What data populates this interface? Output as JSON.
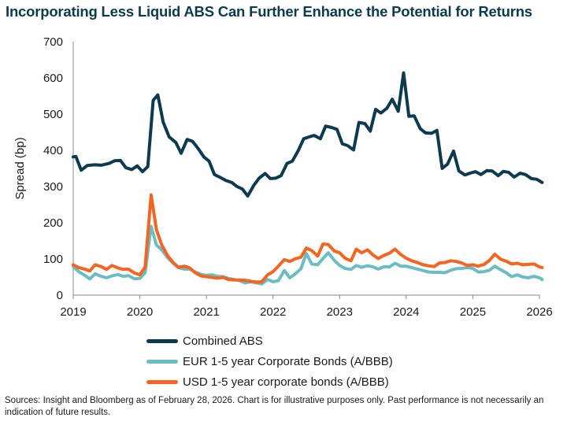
{
  "title": "Incorporating Less Liquid ABS Can Further Enhance the Potential for Returns",
  "source": "Sources: Insight and Bloomberg as of February 28, 2026. Chart is for illustrative purposes only. Past performance is not necessarily an indication of future results.",
  "colors": {
    "combined": "#0d3a4f",
    "eur": "#6cbcc4",
    "usd": "#f26522"
  },
  "chart_data": {
    "type": "line",
    "title": "Incorporating Less Liquid ABS Can Further Enhance the Potential for Returns",
    "xlabel": "",
    "ylabel": "Spread (bp)",
    "xlim": [
      2019,
      2026
    ],
    "ylim": [
      0,
      700
    ],
    "yticks": [
      0,
      100,
      200,
      300,
      400,
      500,
      600,
      700
    ],
    "xticks": [
      2019,
      2020,
      2021,
      2022,
      2023,
      2024,
      2025,
      2026
    ],
    "xtick_labels": [
      "2019",
      "2020",
      "2021",
      "2022",
      "2023",
      "2024",
      "2025",
      "2026"
    ],
    "grid": false,
    "legend_position": "bottom",
    "series": [
      {
        "name": "Combined ABS",
        "color_key": "combined",
        "points": [
          [
            2019.0,
            382
          ],
          [
            2019.04,
            383
          ],
          [
            2019.12,
            345
          ],
          [
            2019.21,
            358
          ],
          [
            2019.33,
            360
          ],
          [
            2019.42,
            359
          ],
          [
            2019.54,
            364
          ],
          [
            2019.62,
            371
          ],
          [
            2019.71,
            372
          ],
          [
            2019.79,
            352
          ],
          [
            2019.88,
            347
          ],
          [
            2019.96,
            357
          ],
          [
            2020.04,
            341
          ],
          [
            2020.12,
            355
          ],
          [
            2020.2,
            538
          ],
          [
            2020.27,
            553
          ],
          [
            2020.35,
            478
          ],
          [
            2020.44,
            437
          ],
          [
            2020.54,
            422
          ],
          [
            2020.62,
            392
          ],
          [
            2020.71,
            430
          ],
          [
            2020.79,
            425
          ],
          [
            2020.88,
            404
          ],
          [
            2020.96,
            382
          ],
          [
            2021.04,
            370
          ],
          [
            2021.12,
            333
          ],
          [
            2021.21,
            325
          ],
          [
            2021.29,
            317
          ],
          [
            2021.38,
            311
          ],
          [
            2021.46,
            300
          ],
          [
            2021.54,
            293
          ],
          [
            2021.62,
            274
          ],
          [
            2021.71,
            303
          ],
          [
            2021.79,
            323
          ],
          [
            2021.88,
            336
          ],
          [
            2021.96,
            322
          ],
          [
            2022.04,
            323
          ],
          [
            2022.12,
            330
          ],
          [
            2022.21,
            364
          ],
          [
            2022.29,
            370
          ],
          [
            2022.38,
            400
          ],
          [
            2022.46,
            432
          ],
          [
            2022.54,
            437
          ],
          [
            2022.62,
            441
          ],
          [
            2022.71,
            432
          ],
          [
            2022.79,
            467
          ],
          [
            2022.88,
            463
          ],
          [
            2022.96,
            458
          ],
          [
            2023.04,
            418
          ],
          [
            2023.12,
            413
          ],
          [
            2023.21,
            401
          ],
          [
            2023.29,
            477
          ],
          [
            2023.38,
            474
          ],
          [
            2023.46,
            453
          ],
          [
            2023.54,
            513
          ],
          [
            2023.62,
            503
          ],
          [
            2023.71,
            516
          ],
          [
            2023.79,
            541
          ],
          [
            2023.88,
            508
          ],
          [
            2023.96,
            614
          ],
          [
            2024.04,
            494
          ],
          [
            2024.12,
            495
          ],
          [
            2024.21,
            460
          ],
          [
            2024.29,
            448
          ],
          [
            2024.38,
            447
          ],
          [
            2024.46,
            455
          ],
          [
            2024.54,
            350
          ],
          [
            2024.62,
            362
          ],
          [
            2024.71,
            398
          ],
          [
            2024.79,
            343
          ],
          [
            2024.88,
            332
          ],
          [
            2024.96,
            337
          ],
          [
            2025.04,
            341
          ],
          [
            2025.12,
            333
          ],
          [
            2025.21,
            344
          ],
          [
            2025.29,
            343
          ],
          [
            2025.38,
            330
          ],
          [
            2025.46,
            342
          ],
          [
            2025.54,
            339
          ],
          [
            2025.62,
            326
          ],
          [
            2025.71,
            337
          ],
          [
            2025.79,
            333
          ],
          [
            2025.88,
            322
          ],
          [
            2025.96,
            320
          ],
          [
            2026.04,
            311
          ]
        ]
      },
      {
        "name": "EUR 1-5 year Corporate Bonds (A/BBB)",
        "color_key": "eur",
        "points": [
          [
            2019.0,
            79
          ],
          [
            2019.08,
            65
          ],
          [
            2019.17,
            55
          ],
          [
            2019.25,
            45
          ],
          [
            2019.33,
            59
          ],
          [
            2019.42,
            52
          ],
          [
            2019.5,
            48
          ],
          [
            2019.58,
            53
          ],
          [
            2019.67,
            57
          ],
          [
            2019.75,
            52
          ],
          [
            2019.83,
            54
          ],
          [
            2019.92,
            45
          ],
          [
            2020.0,
            46
          ],
          [
            2020.08,
            62
          ],
          [
            2020.17,
            190
          ],
          [
            2020.25,
            138
          ],
          [
            2020.33,
            125
          ],
          [
            2020.42,
            103
          ],
          [
            2020.5,
            88
          ],
          [
            2020.58,
            76
          ],
          [
            2020.67,
            72
          ],
          [
            2020.75,
            72
          ],
          [
            2020.83,
            64
          ],
          [
            2020.92,
            57
          ],
          [
            2021.0,
            55
          ],
          [
            2021.08,
            56
          ],
          [
            2021.17,
            52
          ],
          [
            2021.25,
            51
          ],
          [
            2021.33,
            46
          ],
          [
            2021.42,
            43
          ],
          [
            2021.5,
            40
          ],
          [
            2021.58,
            34
          ],
          [
            2021.67,
            37
          ],
          [
            2021.75,
            34
          ],
          [
            2021.83,
            31
          ],
          [
            2021.92,
            43
          ],
          [
            2022.0,
            37
          ],
          [
            2022.08,
            40
          ],
          [
            2022.17,
            68
          ],
          [
            2022.25,
            48
          ],
          [
            2022.33,
            58
          ],
          [
            2022.42,
            73
          ],
          [
            2022.5,
            115
          ],
          [
            2022.58,
            86
          ],
          [
            2022.67,
            84
          ],
          [
            2022.75,
            101
          ],
          [
            2022.83,
            117
          ],
          [
            2022.92,
            96
          ],
          [
            2023.0,
            82
          ],
          [
            2023.08,
            74
          ],
          [
            2023.17,
            71
          ],
          [
            2023.25,
            82
          ],
          [
            2023.33,
            77
          ],
          [
            2023.42,
            81
          ],
          [
            2023.5,
            78
          ],
          [
            2023.58,
            72
          ],
          [
            2023.67,
            79
          ],
          [
            2023.75,
            78
          ],
          [
            2023.83,
            88
          ],
          [
            2023.92,
            80
          ],
          [
            2024.0,
            80
          ],
          [
            2024.08,
            76
          ],
          [
            2024.17,
            72
          ],
          [
            2024.25,
            68
          ],
          [
            2024.33,
            64
          ],
          [
            2024.42,
            63
          ],
          [
            2024.5,
            63
          ],
          [
            2024.58,
            62
          ],
          [
            2024.67,
            69
          ],
          [
            2024.75,
            73
          ],
          [
            2024.83,
            74
          ],
          [
            2024.92,
            76
          ],
          [
            2025.0,
            74
          ],
          [
            2025.08,
            64
          ],
          [
            2025.17,
            65
          ],
          [
            2025.25,
            69
          ],
          [
            2025.33,
            80
          ],
          [
            2025.42,
            70
          ],
          [
            2025.5,
            62
          ],
          [
            2025.58,
            51
          ],
          [
            2025.67,
            56
          ],
          [
            2025.75,
            50
          ],
          [
            2025.83,
            48
          ],
          [
            2025.92,
            52
          ],
          [
            2026.0,
            48
          ],
          [
            2026.04,
            43
          ]
        ]
      },
      {
        "name": "USD 1-5 year corporate bonds (A/BBB)",
        "color_key": "usd",
        "points": [
          [
            2019.0,
            84
          ],
          [
            2019.08,
            76
          ],
          [
            2019.17,
            72
          ],
          [
            2019.25,
            67
          ],
          [
            2019.33,
            84
          ],
          [
            2019.42,
            79
          ],
          [
            2019.5,
            71
          ],
          [
            2019.58,
            82
          ],
          [
            2019.67,
            75
          ],
          [
            2019.75,
            71
          ],
          [
            2019.83,
            72
          ],
          [
            2019.92,
            61
          ],
          [
            2020.0,
            56
          ],
          [
            2020.08,
            78
          ],
          [
            2020.17,
            277
          ],
          [
            2020.25,
            180
          ],
          [
            2020.33,
            138
          ],
          [
            2020.42,
            108
          ],
          [
            2020.5,
            90
          ],
          [
            2020.58,
            77
          ],
          [
            2020.67,
            80
          ],
          [
            2020.75,
            75
          ],
          [
            2020.83,
            62
          ],
          [
            2020.92,
            53
          ],
          [
            2021.0,
            51
          ],
          [
            2021.08,
            49
          ],
          [
            2021.17,
            47
          ],
          [
            2021.25,
            49
          ],
          [
            2021.33,
            43
          ],
          [
            2021.42,
            42
          ],
          [
            2021.5,
            42
          ],
          [
            2021.58,
            41
          ],
          [
            2021.67,
            38
          ],
          [
            2021.75,
            36
          ],
          [
            2021.83,
            37
          ],
          [
            2021.92,
            56
          ],
          [
            2022.0,
            65
          ],
          [
            2022.08,
            80
          ],
          [
            2022.17,
            98
          ],
          [
            2022.25,
            93
          ],
          [
            2022.33,
            100
          ],
          [
            2022.42,
            105
          ],
          [
            2022.5,
            130
          ],
          [
            2022.58,
            123
          ],
          [
            2022.67,
            108
          ],
          [
            2022.75,
            141
          ],
          [
            2022.83,
            140
          ],
          [
            2022.92,
            122
          ],
          [
            2023.0,
            117
          ],
          [
            2023.08,
            102
          ],
          [
            2023.17,
            95
          ],
          [
            2023.25,
            127
          ],
          [
            2023.33,
            117
          ],
          [
            2023.42,
            125
          ],
          [
            2023.5,
            111
          ],
          [
            2023.58,
            101
          ],
          [
            2023.67,
            110
          ],
          [
            2023.75,
            116
          ],
          [
            2023.83,
            127
          ],
          [
            2023.92,
            112
          ],
          [
            2024.0,
            102
          ],
          [
            2024.08,
            95
          ],
          [
            2024.17,
            90
          ],
          [
            2024.25,
            84
          ],
          [
            2024.33,
            81
          ],
          [
            2024.42,
            79
          ],
          [
            2024.5,
            89
          ],
          [
            2024.58,
            90
          ],
          [
            2024.67,
            95
          ],
          [
            2024.75,
            93
          ],
          [
            2024.83,
            89
          ],
          [
            2024.92,
            82
          ],
          [
            2025.0,
            84
          ],
          [
            2025.08,
            80
          ],
          [
            2025.17,
            85
          ],
          [
            2025.25,
            96
          ],
          [
            2025.33,
            113
          ],
          [
            2025.42,
            99
          ],
          [
            2025.5,
            94
          ],
          [
            2025.58,
            86
          ],
          [
            2025.67,
            88
          ],
          [
            2025.75,
            84
          ],
          [
            2025.83,
            85
          ],
          [
            2025.92,
            86
          ],
          [
            2026.0,
            78
          ],
          [
            2026.04,
            76
          ]
        ]
      }
    ]
  }
}
